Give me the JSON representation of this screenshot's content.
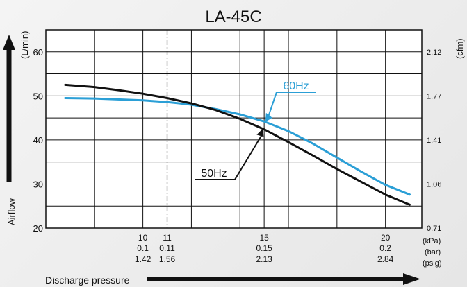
{
  "chart_data": {
    "type": "line",
    "title": "LA-45C",
    "ylabel_left": "Airflow",
    "ylabel_left_unit": "(L/min)",
    "ylabel_right_unit": "(cfm)",
    "xlabel": "Discharge pressure",
    "x_units": [
      "(kPa)",
      "(bar)",
      "(psig)"
    ],
    "xlim": [
      6,
      21.5
    ],
    "ylim": [
      20,
      65
    ],
    "y_ticks": [
      20,
      30,
      40,
      50,
      60
    ],
    "y_right_ticks": [
      {
        "label": "2.12",
        "y": 60
      },
      {
        "label": "1.77",
        "y": 50
      },
      {
        "label": "1.41",
        "y": 40
      },
      {
        "label": "1.06",
        "y": 30
      },
      {
        "label": "0.71",
        "y": 20
      }
    ],
    "x_ticks": [
      {
        "x": 10,
        "kpa": "10",
        "bar": "0.1",
        "psig": "1.42"
      },
      {
        "x": 11,
        "kpa": "11",
        "bar": "0.11",
        "psig": "1.56"
      },
      {
        "x": 15,
        "kpa": "15",
        "bar": "0.15",
        "psig": "2.13"
      },
      {
        "x": 20,
        "kpa": "20",
        "bar": "0.2",
        "psig": "2.84"
      }
    ],
    "rated_pressure": 11,
    "grid": true,
    "series": [
      {
        "name": "60Hz",
        "color": "#2b9fd6",
        "points": [
          [
            6.8,
            49.5
          ],
          [
            8,
            49.4
          ],
          [
            10,
            49
          ],
          [
            11,
            48.6
          ],
          [
            12,
            48
          ],
          [
            13,
            47
          ],
          [
            14,
            45.8
          ],
          [
            15,
            44.2
          ],
          [
            16,
            42
          ],
          [
            17,
            39.2
          ],
          [
            18,
            36
          ],
          [
            19,
            32.8
          ],
          [
            20,
            29.8
          ],
          [
            21,
            27.6
          ]
        ]
      },
      {
        "name": "50Hz",
        "color": "#111111",
        "points": [
          [
            6.8,
            52.5
          ],
          [
            8,
            52
          ],
          [
            9,
            51.3
          ],
          [
            10,
            50.5
          ],
          [
            11,
            49.5
          ],
          [
            12,
            48.3
          ],
          [
            13,
            46.8
          ],
          [
            14,
            44.8
          ],
          [
            15,
            42.4
          ],
          [
            16,
            39.5
          ],
          [
            17,
            36.5
          ],
          [
            18,
            33.4
          ],
          [
            19,
            30.5
          ],
          [
            20,
            27.6
          ],
          [
            21,
            25.3
          ]
        ]
      }
    ]
  }
}
